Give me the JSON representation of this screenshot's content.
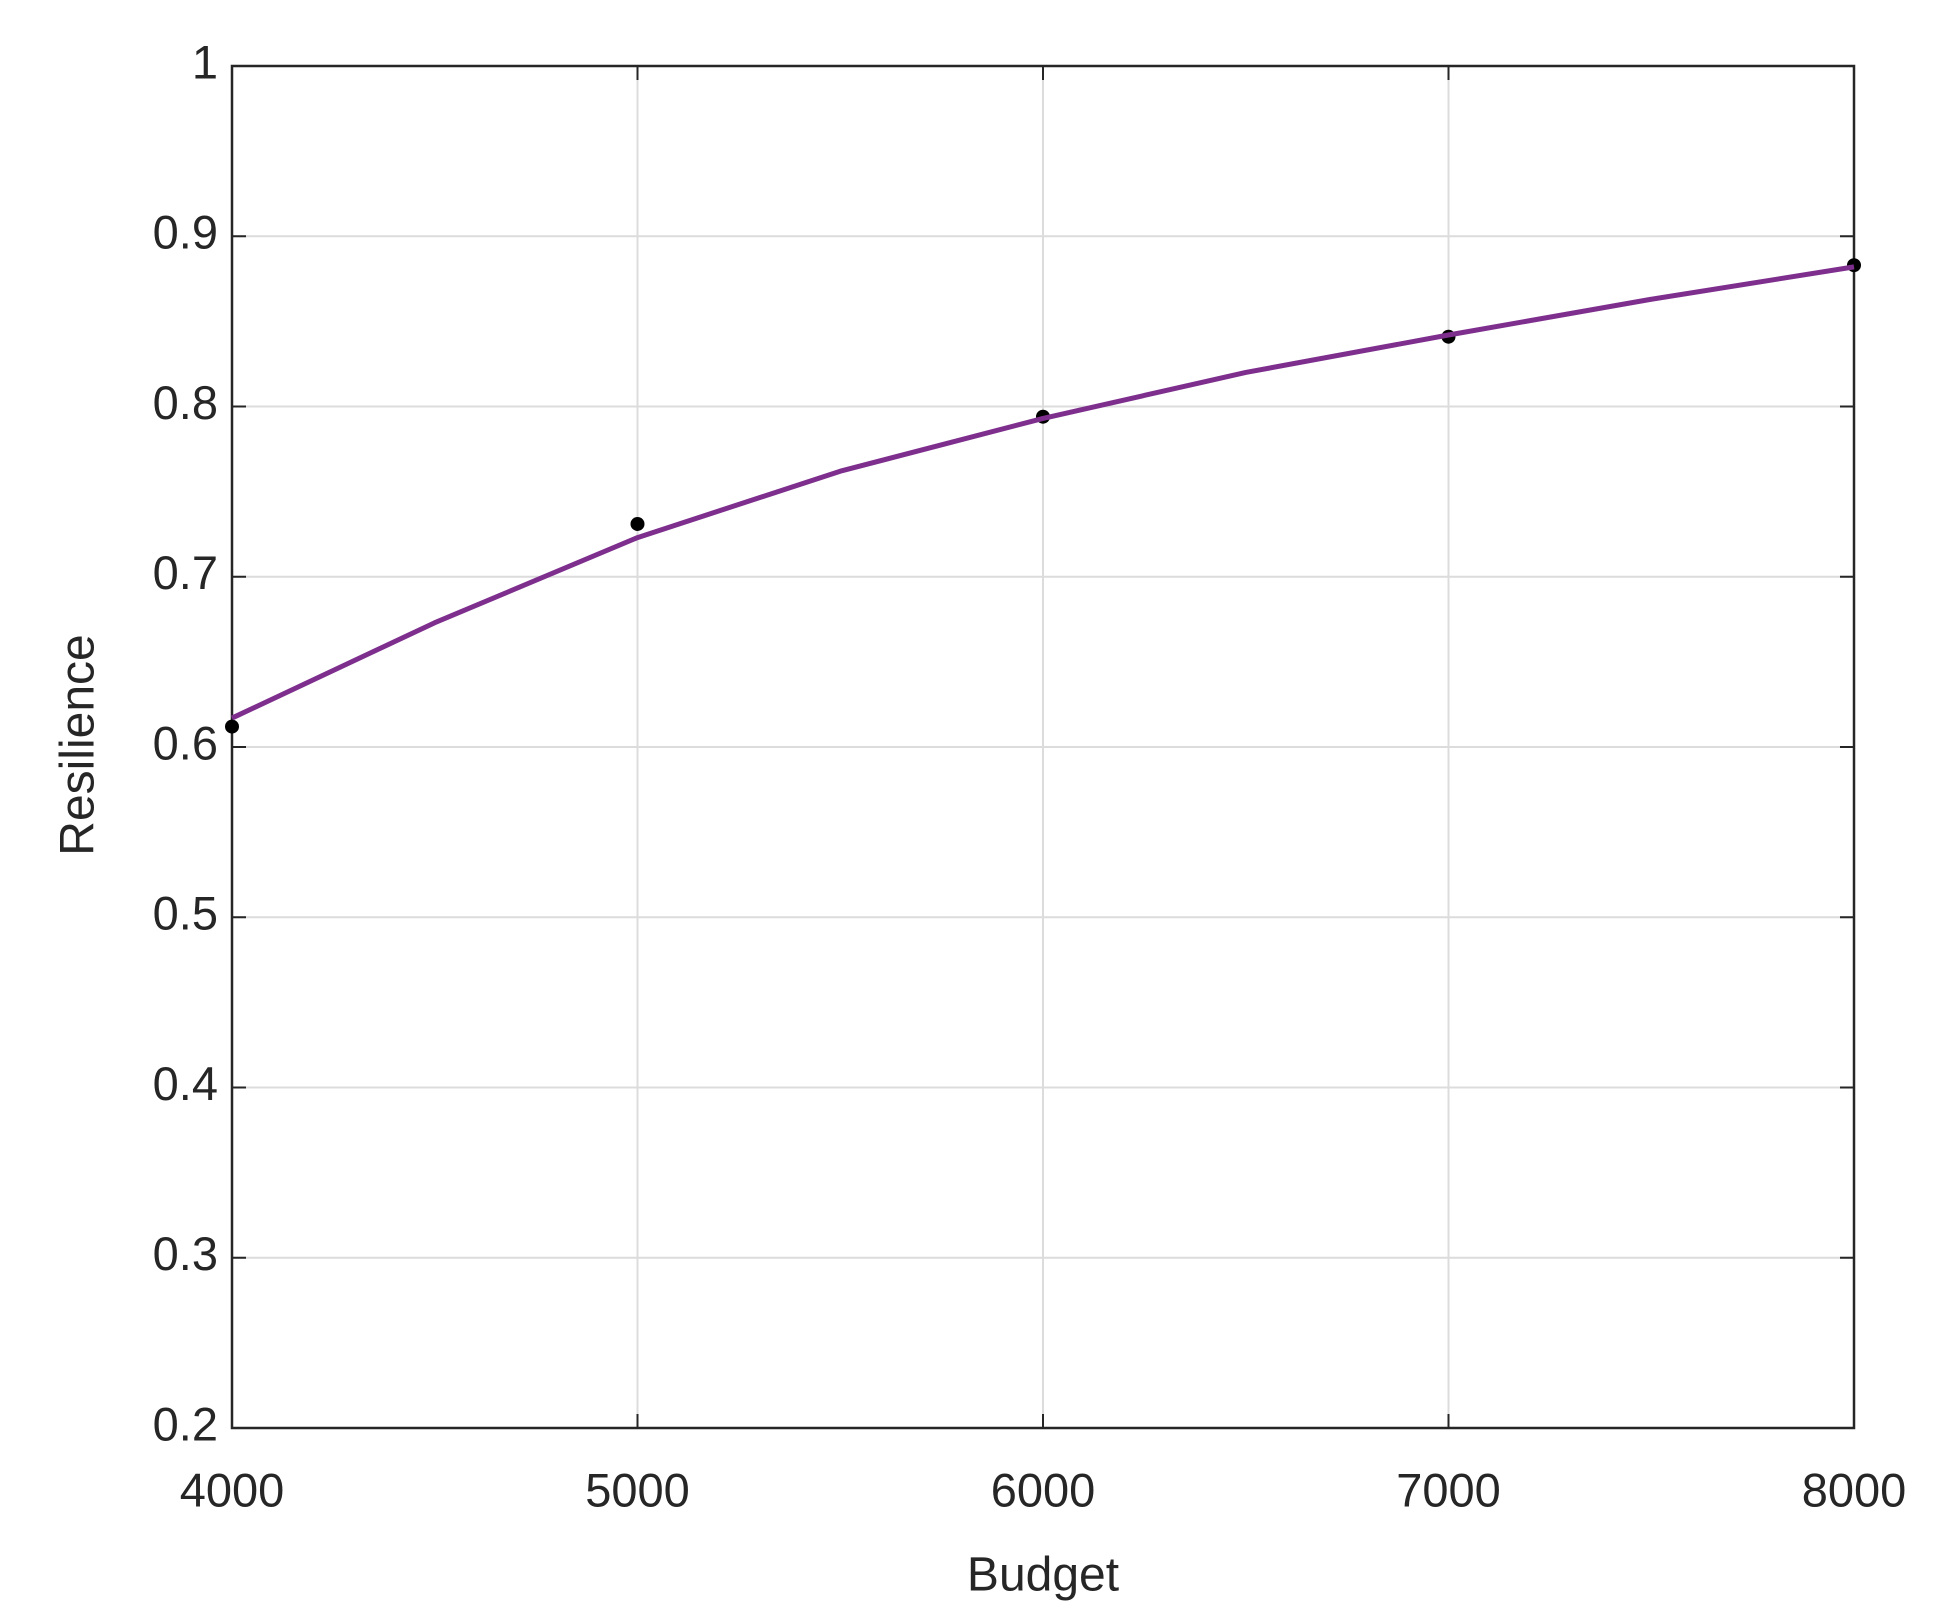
{
  "chart_data": {
    "type": "scatter",
    "x_label": "Budget",
    "y_label": "Resilience",
    "xlim": [
      4000,
      8000
    ],
    "xticks": [
      4000,
      5000,
      6000,
      7000,
      8000
    ],
    "ylim": [
      0.2,
      1
    ],
    "yticks": [
      0.2,
      0.3,
      0.4,
      0.5,
      0.6,
      0.7,
      0.8,
      0.9,
      1
    ],
    "grid": true,
    "series": [
      {
        "type": "scatter",
        "color": "#000000",
        "x": [
          4000,
          5000,
          6000,
          7000,
          8000
        ],
        "values": [
          0.612,
          0.731,
          0.794,
          0.841,
          0.883
        ]
      },
      {
        "type": "line",
        "color": "#7e2f8e",
        "x": [
          4000,
          4500,
          5000,
          5500,
          6000,
          6500,
          7000,
          7500,
          8000
        ],
        "values": [
          0.617,
          0.673,
          0.723,
          0.762,
          0.793,
          0.82,
          0.842,
          0.863,
          0.882
        ]
      }
    ]
  }
}
